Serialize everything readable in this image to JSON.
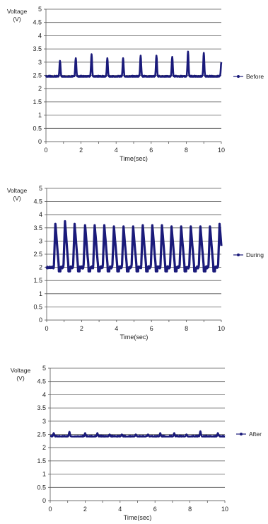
{
  "charts": [
    {
      "id": "before",
      "ylabel": "Voltage",
      "yunit": "(V)",
      "xlabel": "Time(sec)",
      "legend": "Before",
      "yticks": [
        "0",
        "0.5",
        "1",
        "1.5",
        "2",
        "2.5",
        "3",
        "3.5",
        "4",
        "4.5",
        "5"
      ],
      "xticks": [
        "0",
        "2",
        "4",
        "6",
        "8",
        "10"
      ]
    },
    {
      "id": "during",
      "ylabel": "Voltage",
      "yunit": "(V)",
      "xlabel": "Time(sec)",
      "legend": "During",
      "yticks": [
        "0",
        "0.5",
        "1",
        "1.5",
        "2",
        "2.5",
        "3",
        "3.5",
        "4",
        "4.5",
        "5"
      ],
      "xticks": [
        "0",
        "2",
        "4",
        "6",
        "8",
        "10"
      ]
    },
    {
      "id": "after",
      "ylabel": "Voltage",
      "yunit": "(V)",
      "xlabel": "Time(sec)",
      "legend": "After",
      "yticks": [
        "0",
        "0.5",
        "1",
        "1.5",
        "2",
        "2.5",
        "3",
        "3.5",
        "4",
        "4.5",
        "5"
      ],
      "xticks": [
        "0",
        "2",
        "4",
        "6",
        "8",
        "10"
      ]
    }
  ],
  "chart_data": [
    {
      "type": "line",
      "series": [
        {
          "name": "Before",
          "color": "#1a1a7a",
          "baseline": 2.45,
          "peaks": [
            {
              "t": 0.8,
              "v": 3.05
            },
            {
              "t": 1.7,
              "v": 3.15
            },
            {
              "t": 2.6,
              "v": 3.3
            },
            {
              "t": 3.5,
              "v": 3.15
            },
            {
              "t": 4.4,
              "v": 3.15
            },
            {
              "t": 5.4,
              "v": 3.25
            },
            {
              "t": 6.3,
              "v": 3.25
            },
            {
              "t": 7.2,
              "v": 3.2
            },
            {
              "t": 8.1,
              "v": 3.4
            },
            {
              "t": 9.0,
              "v": 3.35
            },
            {
              "t": 10.0,
              "v": 3.0
            }
          ]
        }
      ],
      "xlim": [
        0,
        10
      ],
      "ylim": [
        0,
        5
      ],
      "grid": true,
      "legend_position": "right"
    },
    {
      "type": "line",
      "series": [
        {
          "name": "During",
          "color": "#1a1a7a",
          "baseline": 2.0,
          "peaks": [
            {
              "t": 0.5,
              "v": 3.65
            },
            {
              "t": 1.05,
              "v": 3.75
            },
            {
              "t": 1.6,
              "v": 3.65
            },
            {
              "t": 2.2,
              "v": 3.6
            },
            {
              "t": 2.75,
              "v": 3.6
            },
            {
              "t": 3.3,
              "v": 3.6
            },
            {
              "t": 3.85,
              "v": 3.55
            },
            {
              "t": 4.4,
              "v": 3.55
            },
            {
              "t": 4.95,
              "v": 3.55
            },
            {
              "t": 5.5,
              "v": 3.6
            },
            {
              "t": 6.05,
              "v": 3.6
            },
            {
              "t": 6.6,
              "v": 3.6
            },
            {
              "t": 7.15,
              "v": 3.55
            },
            {
              "t": 7.7,
              "v": 3.55
            },
            {
              "t": 8.25,
              "v": 3.55
            },
            {
              "t": 8.8,
              "v": 3.55
            },
            {
              "t": 9.35,
              "v": 3.55
            },
            {
              "t": 9.9,
              "v": 3.65
            }
          ]
        }
      ],
      "xlim": [
        0,
        10
      ],
      "ylim": [
        0,
        5
      ],
      "grid": true,
      "legend_position": "right"
    },
    {
      "type": "line",
      "series": [
        {
          "name": "After",
          "color": "#1a1a7a",
          "baseline": 2.42,
          "peaks": [
            {
              "t": 0.2,
              "v": 2.55
            },
            {
              "t": 1.1,
              "v": 2.6
            },
            {
              "t": 2.0,
              "v": 2.55
            },
            {
              "t": 2.7,
              "v": 2.55
            },
            {
              "t": 3.4,
              "v": 2.5
            },
            {
              "t": 4.1,
              "v": 2.5
            },
            {
              "t": 4.9,
              "v": 2.5
            },
            {
              "t": 5.6,
              "v": 2.5
            },
            {
              "t": 6.3,
              "v": 2.55
            },
            {
              "t": 7.1,
              "v": 2.55
            },
            {
              "t": 7.8,
              "v": 2.5
            },
            {
              "t": 8.6,
              "v": 2.62
            },
            {
              "t": 9.6,
              "v": 2.55
            }
          ]
        }
      ],
      "xlim": [
        0,
        10
      ],
      "ylim": [
        0,
        5
      ],
      "grid": true,
      "legend_position": "right"
    }
  ]
}
